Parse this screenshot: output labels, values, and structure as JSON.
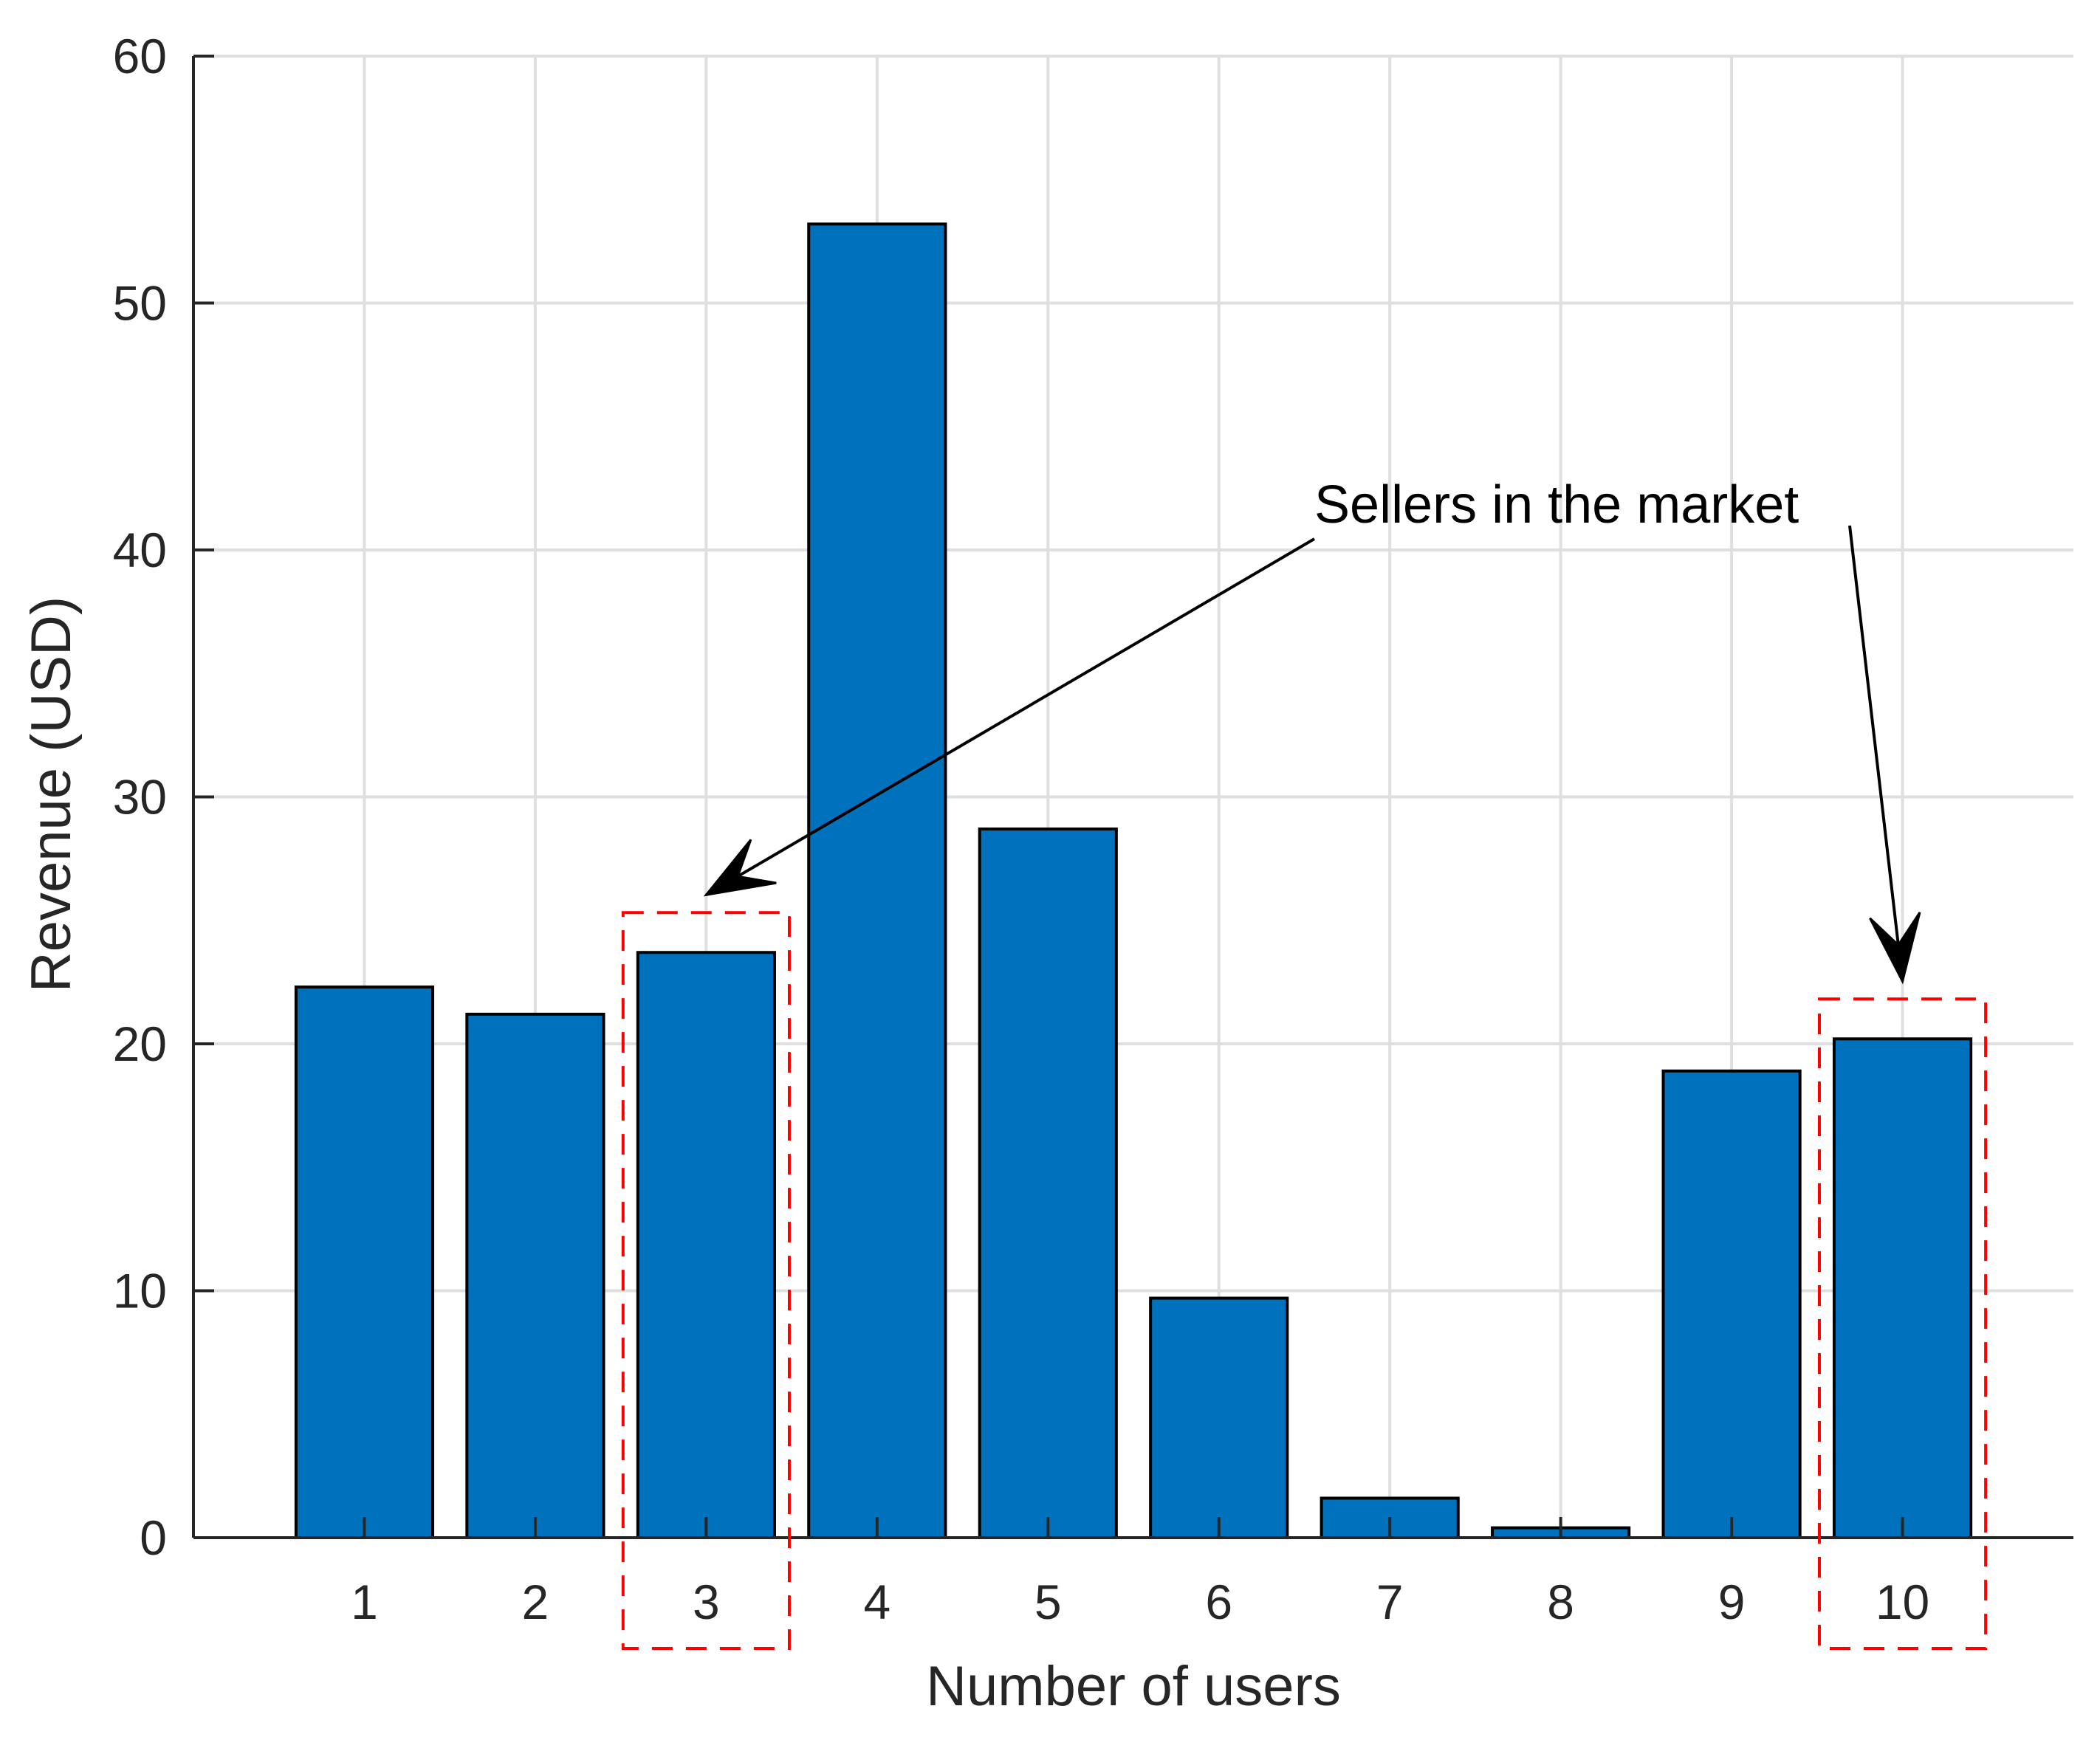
{
  "chart_data": {
    "type": "bar",
    "categories": [
      "1",
      "2",
      "3",
      "4",
      "5",
      "6",
      "7",
      "8",
      "9",
      "10"
    ],
    "values": [
      22.3,
      21.2,
      23.7,
      53.2,
      28.7,
      9.7,
      1.6,
      0.4,
      18.9,
      20.2
    ],
    "xlabel": "Number of users",
    "ylabel": "Revenue (USD)",
    "ylim": [
      0,
      60
    ],
    "yticks": [
      0,
      10,
      20,
      30,
      40,
      50,
      60
    ],
    "grid": true,
    "bar_color": "#0072BD",
    "highlight_color": "#FF0000",
    "annotation": {
      "text": "Sellers in the market",
      "highlighted_categories": [
        "3",
        "10"
      ]
    }
  }
}
